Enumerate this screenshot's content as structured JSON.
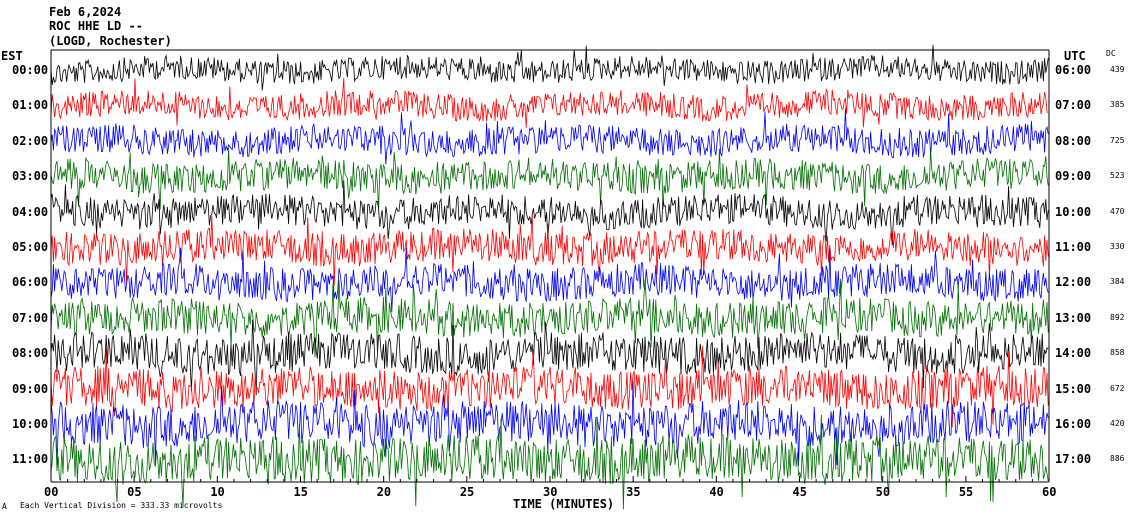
{
  "header": {
    "date": "Feb 6,2024",
    "station": "ROC HHE LD --",
    "location": "(LOGD, Rochester)"
  },
  "labels": {
    "left_zone": "EST",
    "right_zone": "UTC",
    "dc_header": "DC",
    "xlabel": "TIME (MINUTES)",
    "scale_note": "Each Vertical Division = 333.33 microvolts",
    "corner_mark": "A"
  },
  "chart_data": {
    "type": "line",
    "title": "",
    "xlabel": "TIME (MINUTES)",
    "xlim": [
      0,
      60
    ],
    "x_ticks": [
      "00",
      "05",
      "10",
      "15",
      "20",
      "25",
      "30",
      "35",
      "40",
      "45",
      "50",
      "55",
      "60"
    ],
    "trace_colors": [
      "#000000",
      "#ff0000",
      "#0000ff",
      "#007000"
    ],
    "traces": [
      {
        "est": "00:00",
        "utc": "06:00",
        "dc": "439",
        "color": "#000000",
        "amplitude": 1.0
      },
      {
        "est": "01:00",
        "utc": "07:00",
        "dc": "385",
        "color": "#ff0000",
        "amplitude": 1.1
      },
      {
        "est": "02:00",
        "utc": "08:00",
        "dc": "725",
        "color": "#0000ff",
        "amplitude": 1.2
      },
      {
        "est": "03:00",
        "utc": "09:00",
        "dc": "523",
        "color": "#007000",
        "amplitude": 1.3
      },
      {
        "est": "04:00",
        "utc": "10:00",
        "dc": "470",
        "color": "#000000",
        "amplitude": 1.3
      },
      {
        "est": "05:00",
        "utc": "11:00",
        "dc": "330",
        "color": "#ff0000",
        "amplitude": 1.4
      },
      {
        "est": "06:00",
        "utc": "12:00",
        "dc": "384",
        "color": "#0000ff",
        "amplitude": 1.4
      },
      {
        "est": "07:00",
        "utc": "13:00",
        "dc": "892",
        "color": "#007000",
        "amplitude": 1.5
      },
      {
        "est": "08:00",
        "utc": "14:00",
        "dc": "858",
        "color": "#000000",
        "amplitude": 1.6
      },
      {
        "est": "09:00",
        "utc": "15:00",
        "dc": "672",
        "color": "#ff0000",
        "amplitude": 1.7
      },
      {
        "est": "10:00",
        "utc": "16:00",
        "dc": "420",
        "color": "#0000ff",
        "amplitude": 1.8
      },
      {
        "est": "11:00",
        "utc": "17:00",
        "dc": "886",
        "color": "#007000",
        "amplitude": 1.9
      }
    ]
  }
}
